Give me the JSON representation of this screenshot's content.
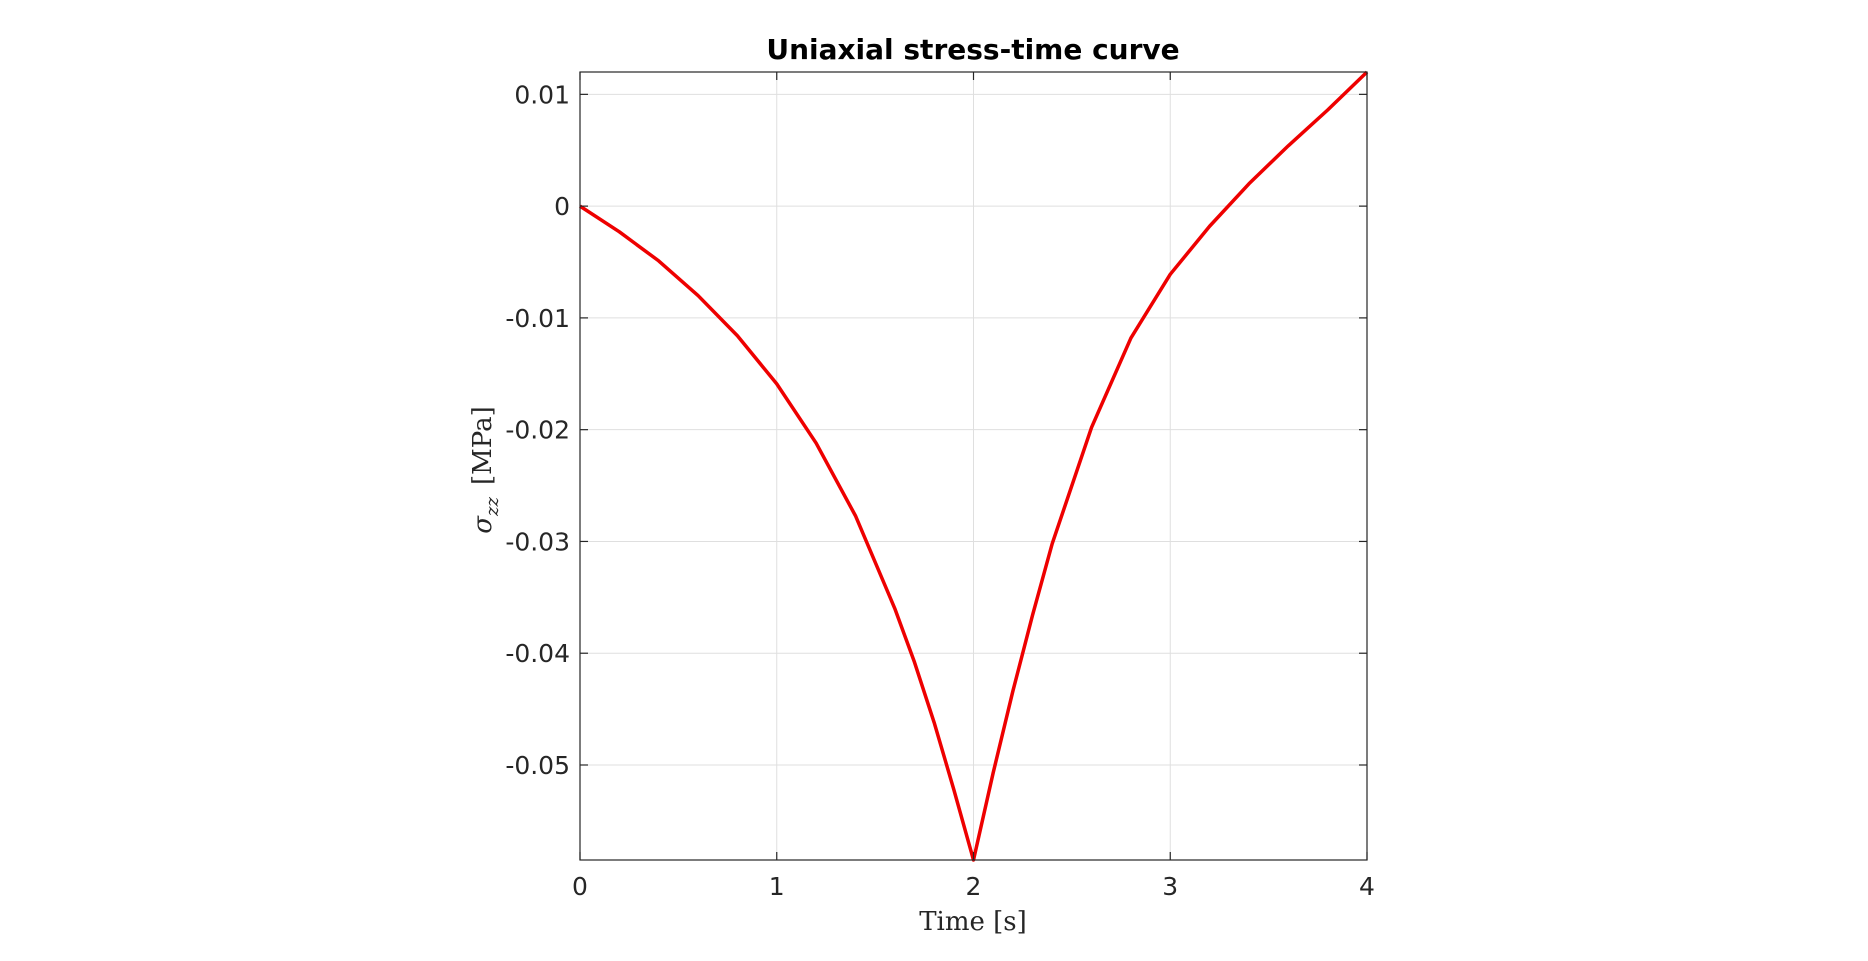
{
  "chart_data": {
    "type": "line",
    "title": "Uniaxial stress-time curve",
    "xlabel": "Time [s]",
    "ylabel_symbol": "σ",
    "ylabel_subscript": "zz",
    "ylabel_unit": "[MPa]",
    "xlim": [
      0,
      4
    ],
    "ylim": [
      -0.0585,
      0.012
    ],
    "x_ticks": [
      0,
      1,
      2,
      3,
      4
    ],
    "x_tick_labels": [
      "0",
      "1",
      "2",
      "3",
      "4"
    ],
    "y_ticks": [
      0.01,
      0,
      -0.01,
      -0.02,
      -0.03,
      -0.04,
      -0.05
    ],
    "y_tick_labels": [
      "0.01",
      "0",
      "-0.01",
      "-0.02",
      "-0.03",
      "-0.04",
      "-0.05"
    ],
    "grid": true,
    "line_color": "#ee0000",
    "series": [
      {
        "x": [
          0,
          0.2,
          0.4,
          0.6,
          0.8,
          1.0,
          1.2,
          1.4,
          1.6,
          1.7,
          1.8,
          1.9,
          2.0,
          2.1,
          2.2,
          2.3,
          2.4,
          2.6,
          2.8,
          3.0,
          3.2,
          3.4,
          3.6,
          3.8,
          4.0
        ],
        "y": [
          0,
          -0.0023,
          -0.0049,
          -0.008,
          -0.0116,
          -0.0159,
          -0.0212,
          -0.0277,
          -0.036,
          -0.0408,
          -0.0462,
          -0.0522,
          -0.0585,
          -0.0507,
          -0.0434,
          -0.0366,
          -0.0302,
          -0.0198,
          -0.0118,
          -0.0061,
          -0.0018,
          0.002,
          0.0054,
          0.0086,
          0.012
        ]
      }
    ]
  }
}
